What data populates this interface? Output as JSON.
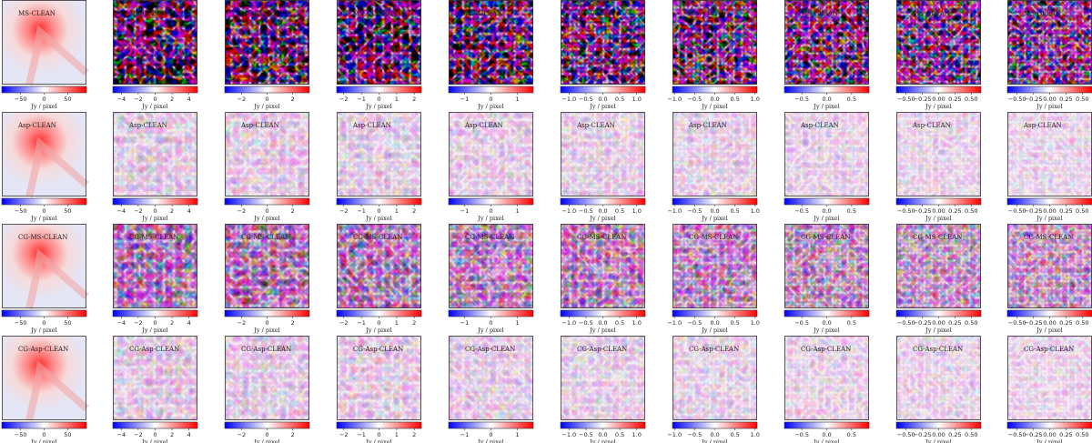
{
  "figure": {
    "colormap": {
      "low": "#0000ff",
      "mid": "#ffffff",
      "high": "#ff0000"
    },
    "colorbar_label": "Jy / pixel",
    "rows": [
      {
        "label": "MS-CLEAN",
        "texture": "strong"
      },
      {
        "label": "Asp-CLEAN",
        "texture": "faint"
      },
      {
        "label": "CG-MS-CLEAN",
        "texture": "medium"
      },
      {
        "label": "CG-Asp-CLEAN",
        "texture": "faint"
      }
    ],
    "columns": [
      {
        "vmax": 90,
        "ticks": [
          "−50",
          "0",
          "50"
        ],
        "tick_values": [
          -50,
          0,
          50
        ]
      },
      {
        "vmax": 5,
        "ticks": [
          "−4",
          "−2",
          "0",
          "2",
          "4"
        ],
        "tick_values": [
          -4,
          -2,
          0,
          2,
          4
        ]
      },
      {
        "vmax": 3.3,
        "ticks": [
          "−2",
          "0",
          "2"
        ],
        "tick_values": [
          -2,
          0,
          2
        ]
      },
      {
        "vmax": 2.4,
        "ticks": [
          "−2",
          "−1",
          "0",
          "1",
          "2"
        ],
        "tick_values": [
          -2,
          -1,
          0,
          1,
          2
        ]
      },
      {
        "vmax": 1.6,
        "ticks": [
          "−1",
          "0",
          "1"
        ],
        "tick_values": [
          -1,
          0,
          1
        ]
      },
      {
        "vmax": 1.25,
        "ticks": [
          "−1.0",
          "−0.5",
          "0.0",
          "0.5",
          "1.0"
        ],
        "tick_values": [
          -1,
          -0.5,
          0,
          0.5,
          1
        ]
      },
      {
        "vmax": 1.05,
        "ticks": [
          "−1.0",
          "−0.5",
          "0.0",
          "0.5",
          "1.0"
        ],
        "tick_values": [
          -1,
          -0.5,
          0,
          0.5,
          1
        ]
      },
      {
        "vmax": 0.85,
        "ticks": [
          "−0.5",
          "0.0",
          "0.5"
        ],
        "tick_values": [
          -0.5,
          0,
          0.5
        ]
      },
      {
        "vmax": 0.65,
        "ticks": [
          "−0.50",
          "−0.25",
          "0.00",
          "0.25",
          "0.50"
        ],
        "tick_values": [
          -0.5,
          -0.25,
          0,
          0.25,
          0.5
        ]
      },
      {
        "vmax": 0.65,
        "ticks": [
          "−0.50",
          "−0.25",
          "0.00",
          "0.25",
          "0.50"
        ],
        "tick_values": [
          -0.5,
          -0.25,
          0,
          0.25,
          0.5
        ]
      }
    ]
  },
  "chart_data": {
    "type": "heatmap",
    "layout": "grid of 4 rows × 10 columns of image panels, each with its own horizontal colorbar",
    "row_labels": [
      "MS-CLEAN",
      "Asp-CLEAN",
      "CG-MS-CLEAN",
      "CG-Asp-CLEAN"
    ],
    "colorbar_label": "Jy / pixel",
    "colorbar_ranges": [
      [
        -90,
        90
      ],
      [
        -5,
        5
      ],
      [
        -3.3,
        3.3
      ],
      [
        -2.4,
        2.4
      ],
      [
        -1.6,
        1.6
      ],
      [
        -1.25,
        1.25
      ],
      [
        -1.05,
        1.05
      ],
      [
        -0.85,
        0.85
      ],
      [
        -0.65,
        0.65
      ],
      [
        -0.65,
        0.65
      ]
    ],
    "colormap": "bwr",
    "grid": false
  }
}
